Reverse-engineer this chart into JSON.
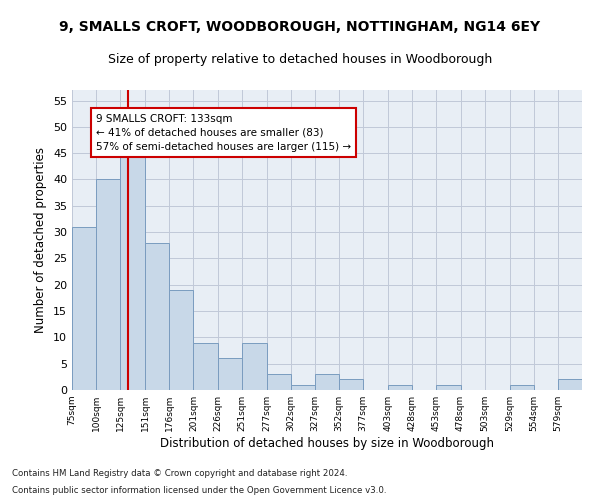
{
  "title1": "9, SMALLS CROFT, WOODBOROUGH, NOTTINGHAM, NG14 6EY",
  "title2": "Size of property relative to detached houses in Woodborough",
  "xlabel": "Distribution of detached houses by size in Woodborough",
  "ylabel": "Number of detached properties",
  "bins": [
    75,
    100,
    125,
    151,
    176,
    201,
    226,
    251,
    277,
    302,
    327,
    352,
    377,
    403,
    428,
    453,
    478,
    503,
    529,
    554,
    579
  ],
  "counts": [
    31,
    40,
    46,
    28,
    19,
    9,
    6,
    9,
    3,
    1,
    3,
    2,
    0,
    1,
    0,
    1,
    0,
    0,
    1,
    0,
    2
  ],
  "bar_color": "#c8d8e8",
  "bar_edge_color": "#7a9cbf",
  "grid_color": "#c0c8d8",
  "vline_x": 133,
  "annotation_title": "9 SMALLS CROFT: 133sqm",
  "annotation_line1": "← 41% of detached houses are smaller (83)",
  "annotation_line2": "57% of semi-detached houses are larger (115) →",
  "annotation_box_color": "#ffffff",
  "annotation_border_color": "#cc0000",
  "vline_color": "#cc0000",
  "footnote1": "Contains HM Land Registry data © Crown copyright and database right 2024.",
  "footnote2": "Contains public sector information licensed under the Open Government Licence v3.0.",
  "ylim": [
    0,
    57
  ],
  "yticks": [
    0,
    5,
    10,
    15,
    20,
    25,
    30,
    35,
    40,
    45,
    50,
    55
  ],
  "bg_color": "#e8eef5",
  "title1_fontsize": 10,
  "title2_fontsize": 9
}
